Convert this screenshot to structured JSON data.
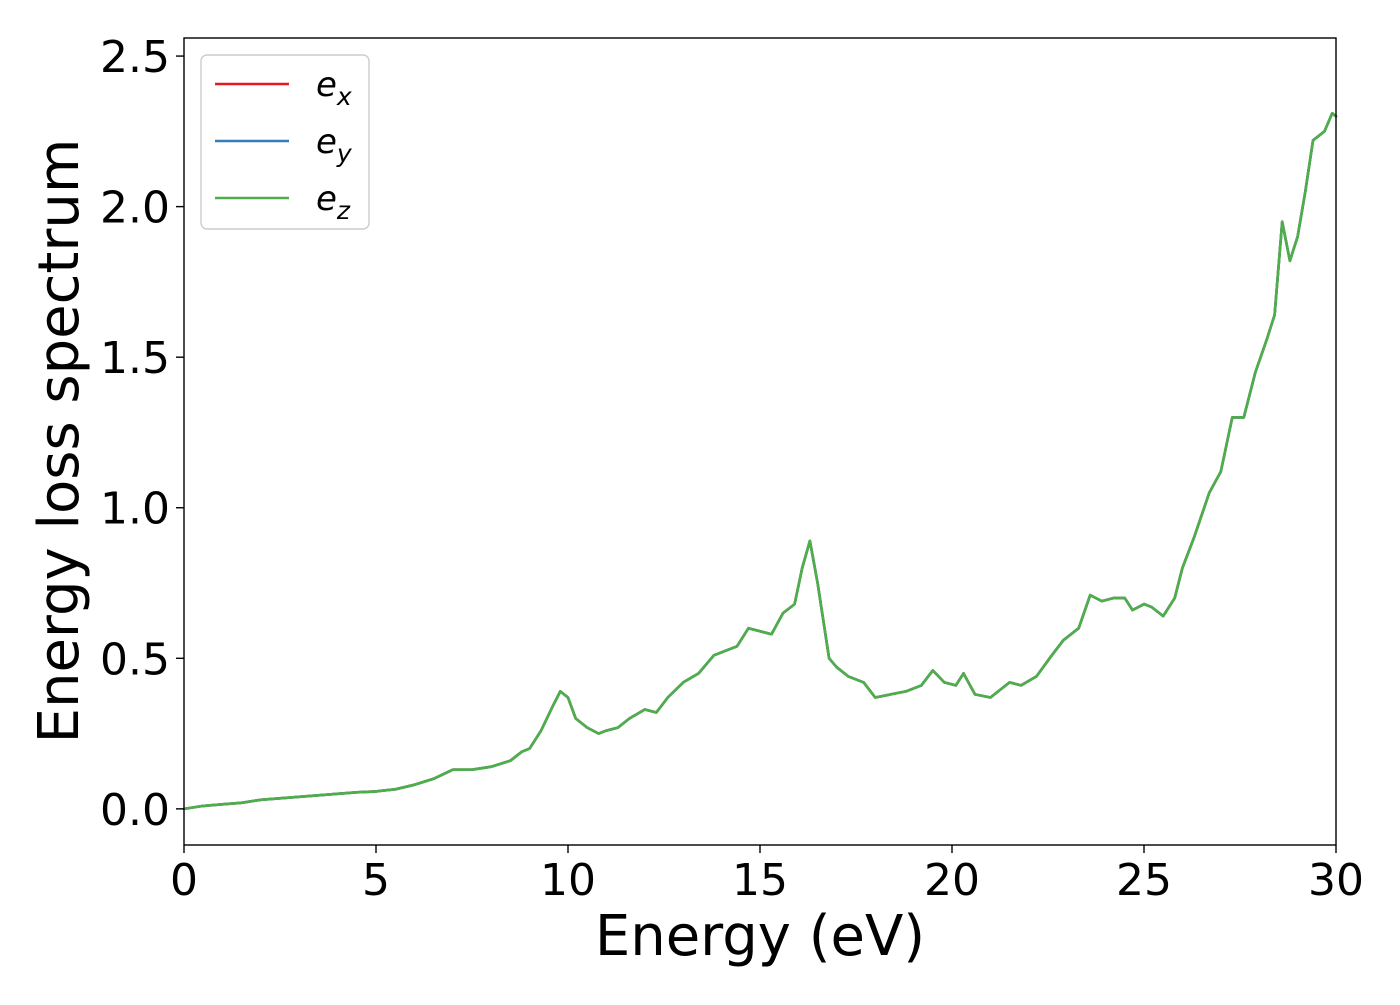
{
  "chart_data": {
    "type": "line",
    "xlabel": "Energy (eV)",
    "ylabel": "Energy loss spectrum",
    "xlim": [
      0,
      30
    ],
    "ylim": [
      -0.12,
      2.56
    ],
    "xticks": [
      0,
      5,
      10,
      15,
      20,
      25,
      30
    ],
    "xtick_labels": [
      "0",
      "5",
      "10",
      "15",
      "20",
      "25",
      "30"
    ],
    "yticks": [
      0.0,
      0.5,
      1.0,
      1.5,
      2.0,
      2.5
    ],
    "ytick_labels": [
      "0.0",
      "0.5",
      "1.0",
      "1.5",
      "2.0",
      "2.5"
    ],
    "grid": false,
    "legend_placement": "top-left",
    "series": [
      {
        "name": "e",
        "subscript": "x",
        "color": "#e41a1c"
      },
      {
        "name": "e",
        "subscript": "y",
        "color": "#377eb8"
      },
      {
        "name": "e",
        "subscript": "z",
        "color": "#4daf4a"
      }
    ],
    "x": [
      0,
      0.5,
      1.0,
      1.5,
      2.0,
      2.5,
      3.0,
      3.5,
      4.0,
      4.5,
      5.0,
      5.5,
      6.0,
      6.5,
      7.0,
      7.5,
      8.0,
      8.5,
      8.8,
      9.0,
      9.3,
      9.6,
      9.8,
      10.0,
      10.2,
      10.5,
      10.8,
      11.0,
      11.3,
      11.6,
      12.0,
      12.3,
      12.6,
      13.0,
      13.4,
      13.8,
      14.2,
      14.4,
      14.7,
      15.0,
      15.3,
      15.6,
      15.9,
      16.1,
      16.3,
      16.5,
      16.8,
      17.0,
      17.3,
      17.7,
      18.0,
      18.4,
      18.8,
      19.2,
      19.5,
      19.8,
      20.1,
      20.3,
      20.6,
      21.0,
      21.5,
      21.8,
      22.2,
      22.6,
      22.9,
      23.3,
      23.6,
      23.9,
      24.2,
      24.5,
      24.7,
      25.0,
      25.2,
      25.5,
      25.8,
      26.0,
      26.3,
      26.7,
      27.0,
      27.3,
      27.6,
      27.9,
      28.2,
      28.4,
      28.6,
      28.8,
      29.0,
      29.2,
      29.4,
      29.7,
      29.9,
      30.0
    ],
    "ex": [
      0.0,
      0.01,
      0.015,
      0.02,
      0.03,
      0.035,
      0.04,
      0.045,
      0.05,
      0.055,
      0.058,
      0.065,
      0.08,
      0.1,
      0.13,
      0.13,
      0.14,
      0.16,
      0.19,
      0.2,
      0.26,
      0.34,
      0.39,
      0.37,
      0.3,
      0.27,
      0.25,
      0.26,
      0.27,
      0.3,
      0.33,
      0.32,
      0.37,
      0.42,
      0.45,
      0.51,
      0.53,
      0.54,
      0.6,
      0.59,
      0.58,
      0.65,
      0.68,
      0.8,
      0.89,
      0.75,
      0.5,
      0.47,
      0.44,
      0.42,
      0.37,
      0.38,
      0.39,
      0.41,
      0.46,
      0.42,
      0.41,
      0.45,
      0.38,
      0.37,
      0.42,
      0.41,
      0.44,
      0.51,
      0.56,
      0.6,
      0.71,
      0.69,
      0.7,
      0.7,
      0.66,
      0.68,
      0.67,
      0.64,
      0.7,
      0.8,
      0.9,
      1.05,
      1.12,
      1.3,
      1.3,
      1.45,
      1.56,
      1.64,
      1.95,
      1.82,
      1.9,
      2.05,
      2.22,
      2.25,
      2.31,
      2.3
    ]
  }
}
